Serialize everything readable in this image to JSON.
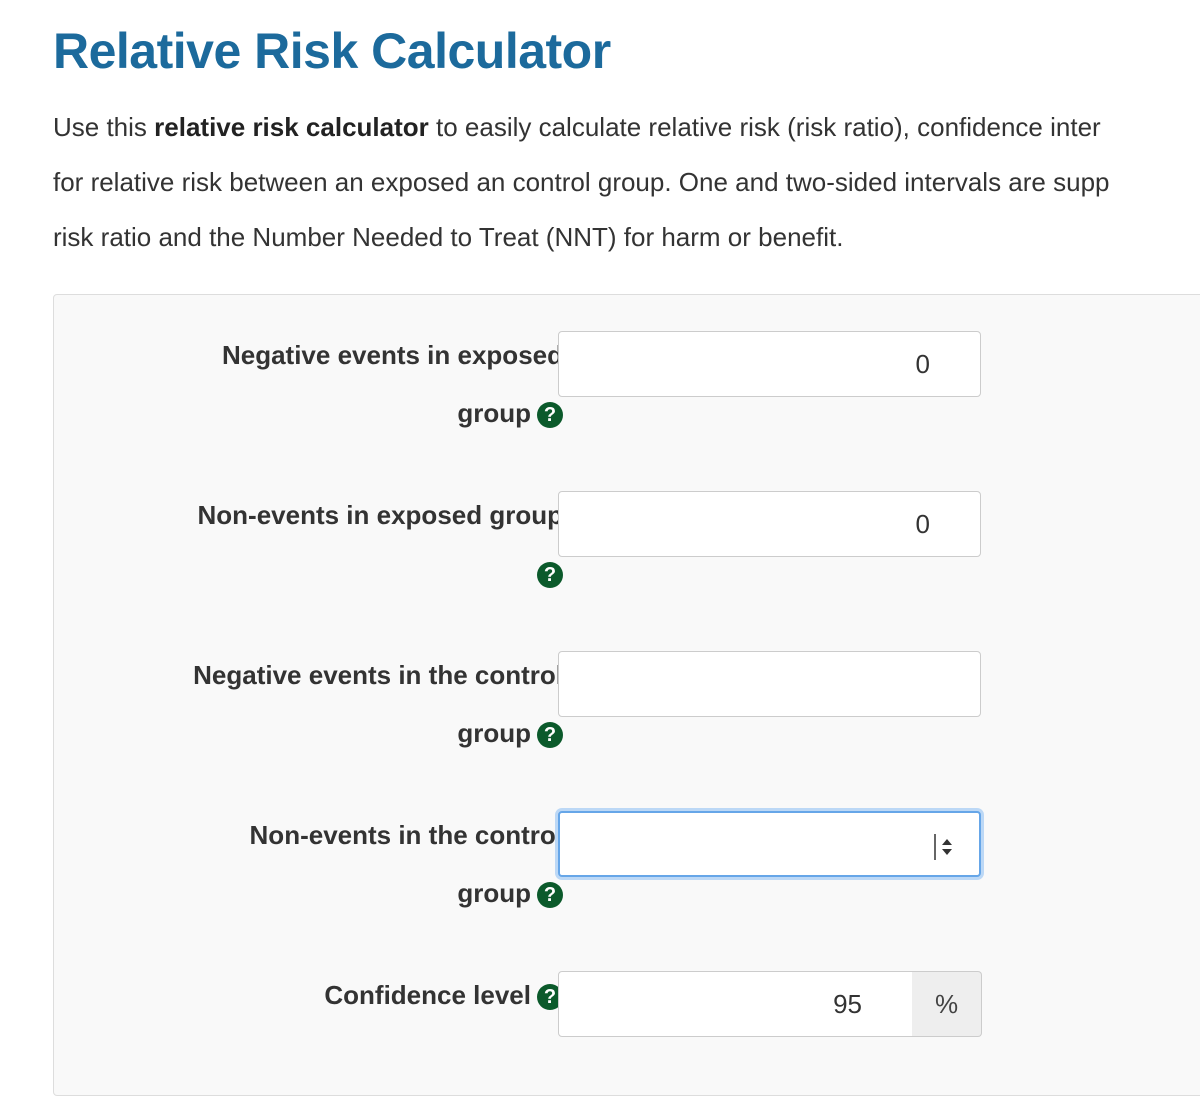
{
  "header": {
    "title": "Relative Risk Calculator"
  },
  "intro": {
    "lines": [
      [
        "Use this ",
        "relative risk calculator",
        " to easily calculate relative risk (risk ratio), confidence inter"
      ],
      [
        "for relative risk between an exposed an control group. One and two-sided intervals are supp"
      ],
      [
        "risk ratio and the Number Needed to Treat (NNT) for harm or benefit."
      ]
    ]
  },
  "help_icon": "?",
  "form": {
    "fields": [
      {
        "label_lines": [
          "Negative events in exposed",
          "group"
        ],
        "value": "0"
      },
      {
        "label_lines": [
          "Non-events in exposed group"
        ],
        "value": "0"
      },
      {
        "label_lines": [
          "Negative events in the control",
          "group"
        ]
      },
      {
        "label_lines": [
          "Non-events in the control",
          "group"
        ],
        "focused": true
      },
      {
        "label_lines": [
          "Confidence level"
        ],
        "value": "95",
        "addon": "%"
      }
    ]
  }
}
